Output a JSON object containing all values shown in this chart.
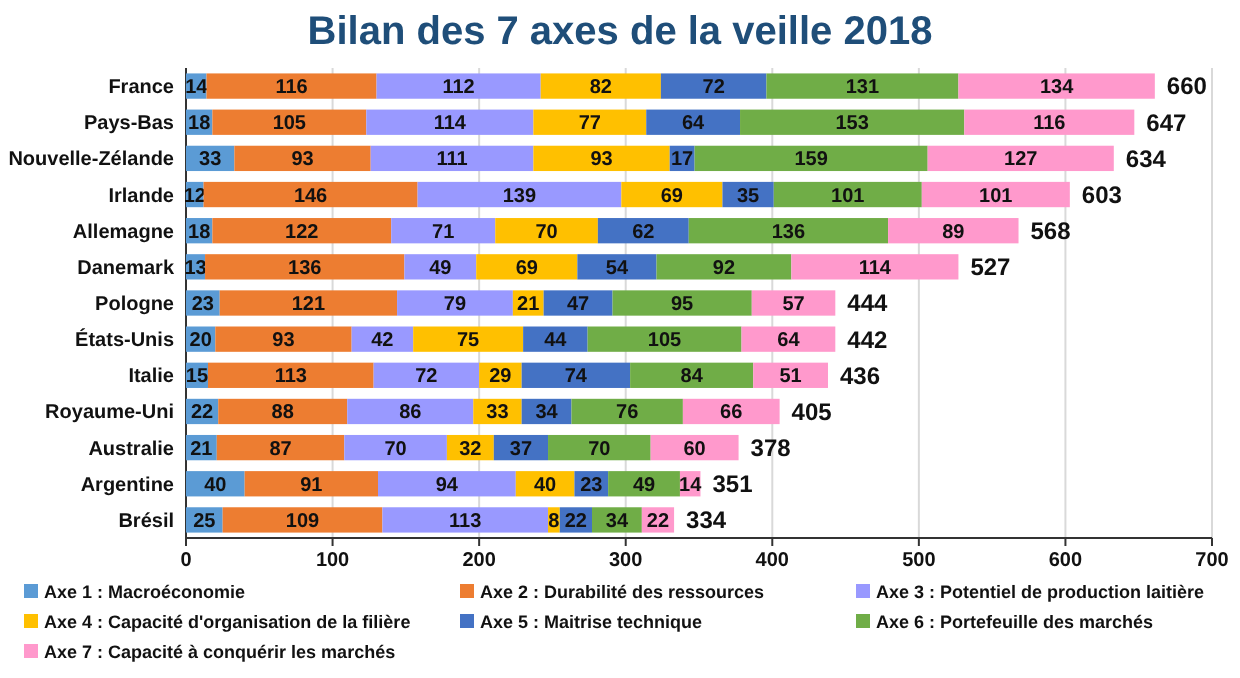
{
  "chart_data": {
    "type": "bar",
    "orientation": "horizontal",
    "stacked": true,
    "title": "Bilan des 7 axes de la veille 2018",
    "categories": [
      "France",
      "Pays-Bas",
      "Nouvelle-Zélande",
      "Irlande",
      "Allemagne",
      "Danemark",
      "Pologne",
      "États-Unis",
      "Italie",
      "Royaume-Uni",
      "Australie",
      "Argentine",
      "Brésil"
    ],
    "series": [
      {
        "name": "Axe 1 : Macroéconomie",
        "color": "#5b9bd5",
        "values": [
          14,
          18,
          33,
          12,
          18,
          13,
          23,
          20,
          15,
          22,
          21,
          40,
          25
        ]
      },
      {
        "name": "Axe 2 : Durabilité des ressources",
        "color": "#ed7d31",
        "values": [
          116,
          105,
          93,
          146,
          122,
          136,
          121,
          93,
          113,
          88,
          87,
          91,
          109
        ]
      },
      {
        "name": "Axe 3 : Potentiel de production laitière",
        "color": "#9999ff",
        "values": [
          112,
          114,
          111,
          139,
          71,
          49,
          79,
          42,
          72,
          86,
          70,
          94,
          113
        ]
      },
      {
        "name": "Axe 4 : Capacité d'organisation de la filière",
        "color": "#ffc000",
        "values": [
          82,
          77,
          93,
          69,
          70,
          69,
          21,
          75,
          29,
          33,
          32,
          40,
          8
        ]
      },
      {
        "name": "Axe 5 : Maitrise technique",
        "color": "#4472c4",
        "values": [
          72,
          64,
          17,
          35,
          62,
          54,
          47,
          44,
          74,
          34,
          37,
          23,
          22
        ]
      },
      {
        "name": "Axe 6 : Portefeuille des marchés",
        "color": "#70ad47",
        "values": [
          131,
          153,
          159,
          101,
          136,
          92,
          95,
          105,
          84,
          76,
          70,
          49,
          34
        ]
      },
      {
        "name": "Axe 7 : Capacité à conquérir les marchés",
        "color": "#ff99cc",
        "values": [
          134,
          116,
          127,
          101,
          89,
          114,
          57,
          64,
          51,
          66,
          60,
          14,
          22
        ]
      }
    ],
    "totals": [
      "660",
      "647",
      "634",
      "603",
      "568",
      "527",
      "444",
      "442",
      "436",
      "405",
      "378",
      "351",
      "334"
    ],
    "data_labels": true,
    "xlim": [
      0,
      700
    ],
    "xticks": [
      0,
      100,
      200,
      300,
      400,
      500,
      600,
      700
    ],
    "grid": "x",
    "legend": "bottom"
  }
}
